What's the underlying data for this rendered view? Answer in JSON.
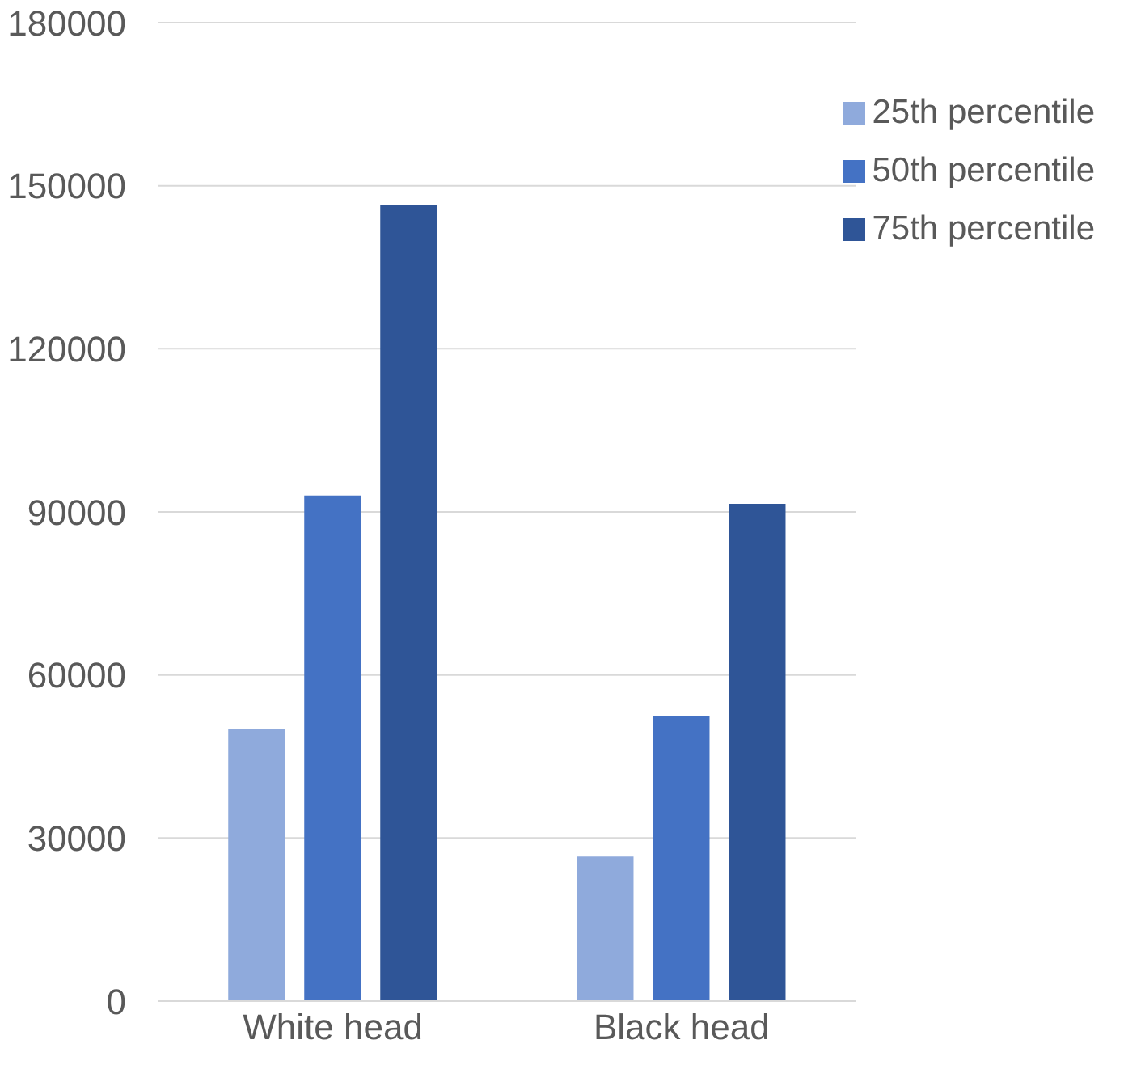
{
  "chart_data": {
    "type": "bar",
    "categories": [
      "White head",
      "Black head"
    ],
    "series": [
      {
        "name": "25th percentile",
        "color": "#8faadc",
        "values": [
          50000,
          26600
        ]
      },
      {
        "name": "50th percentile",
        "color": "#4472c4",
        "values": [
          93000,
          52500
        ]
      },
      {
        "name": "75th percentile",
        "color": "#2f5597",
        "values": [
          146500,
          91500
        ]
      }
    ],
    "ylim": [
      0,
      180000
    ],
    "yticks": [
      0,
      30000,
      60000,
      90000,
      120000,
      150000,
      180000
    ],
    "grid": "y",
    "legend": "top right"
  }
}
